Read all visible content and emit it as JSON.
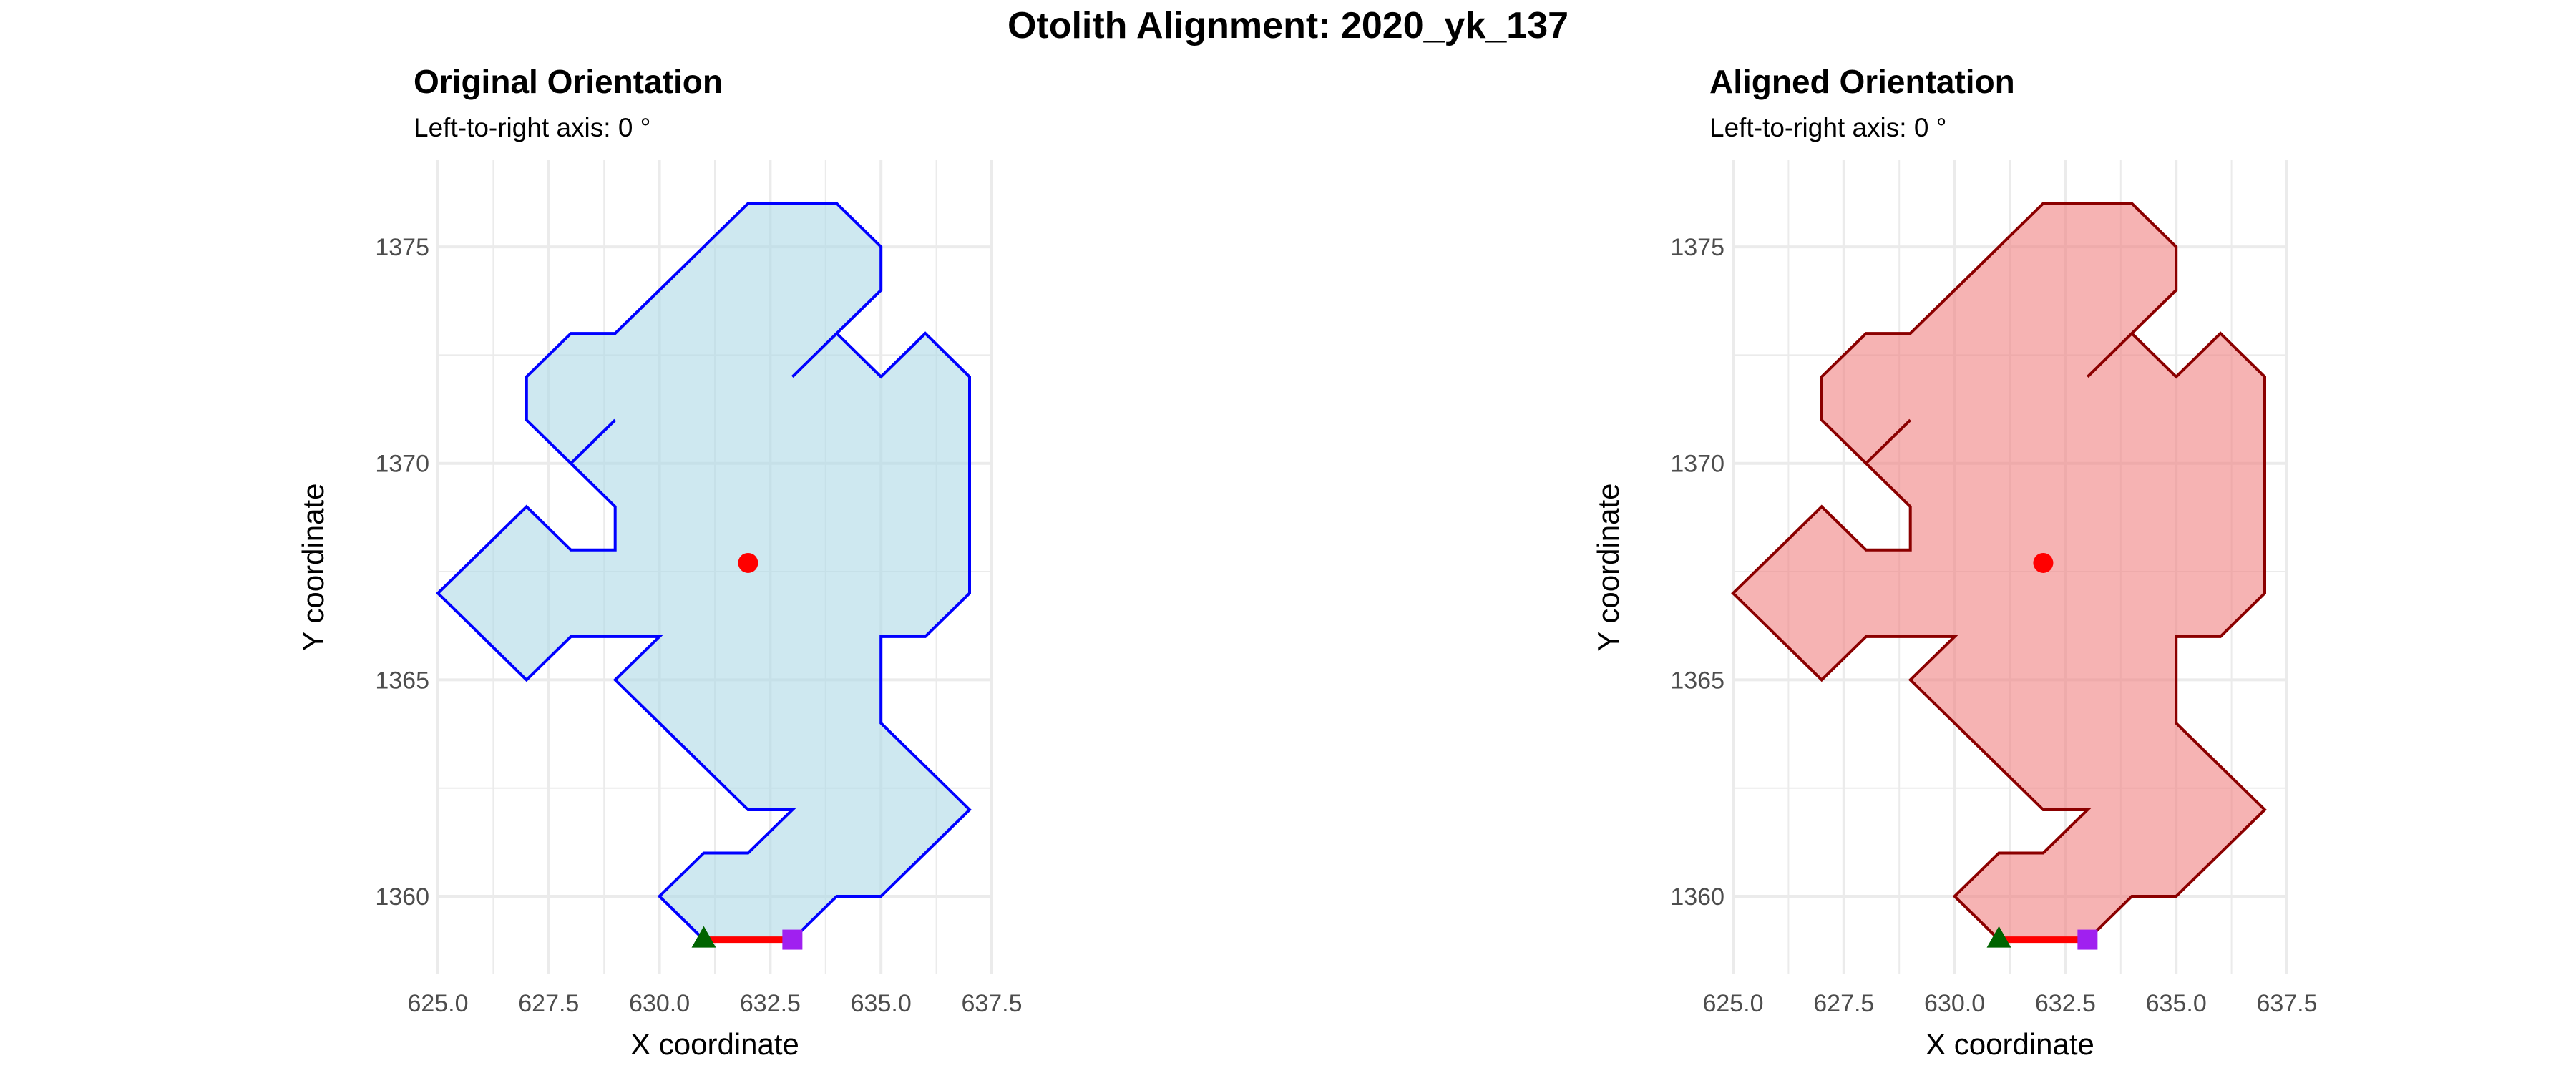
{
  "title": "Otolith Alignment: 2020_yk_137",
  "colors": {
    "grid": "#ebebeb",
    "centroid": "#ff0000",
    "axis_line": "#ff0000",
    "start_marker": "#006400",
    "end_marker": "#a020f0"
  },
  "chart_data": [
    {
      "type": "polygon",
      "title": "Original Orientation",
      "subtitle": "Left-to-right axis: 0 °",
      "xlabel": "X coordinate",
      "ylabel": "Y coordinate",
      "xlim": [
        625,
        637.5
      ],
      "ylim": [
        1358.2,
        1377
      ],
      "x_ticks": [
        "625.0",
        "627.5",
        "630.0",
        "632.5",
        "635.0",
        "637.5"
      ],
      "y_ticks": [
        "1360",
        "1365",
        "1370",
        "1375"
      ],
      "x_tick_values": [
        625,
        627.5,
        630,
        632.5,
        635,
        637.5
      ],
      "y_tick_values": [
        1360,
        1365,
        1370,
        1375
      ],
      "grid": true,
      "fill": "#add8e6",
      "outline": "#0000ff",
      "outline_points": [
        [
          631,
          1359
        ],
        [
          630,
          1360
        ],
        [
          631,
          1361
        ],
        [
          632,
          1361
        ],
        [
          633,
          1362
        ],
        [
          632,
          1362
        ],
        [
          629,
          1365
        ],
        [
          630,
          1366
        ],
        [
          628,
          1366
        ],
        [
          627,
          1365
        ],
        [
          625,
          1367
        ],
        [
          627,
          1369
        ],
        [
          628,
          1368
        ],
        [
          629,
          1368
        ],
        [
          629,
          1369
        ],
        [
          628,
          1370
        ],
        [
          627,
          1371
        ],
        [
          627,
          1372
        ],
        [
          628,
          1373
        ],
        [
          629,
          1373
        ],
        [
          632,
          1376
        ],
        [
          634,
          1376
        ],
        [
          635,
          1375
        ],
        [
          635,
          1374
        ],
        [
          634,
          1373
        ],
        [
          633,
          1372
        ],
        [
          634,
          1373
        ],
        [
          635,
          1372
        ],
        [
          636,
          1373
        ],
        [
          637,
          1372
        ],
        [
          637,
          1367
        ],
        [
          636,
          1366
        ],
        [
          635,
          1366
        ],
        [
          635,
          1364
        ],
        [
          637,
          1362
        ],
        [
          635,
          1360
        ],
        [
          634,
          1360
        ],
        [
          633,
          1359
        ],
        [
          631,
          1359
        ]
      ],
      "spur": [
        [
          628,
          1370
        ],
        [
          629,
          1371
        ]
      ],
      "centroid": [
        632,
        1367.7
      ],
      "axis_start": [
        631,
        1359
      ],
      "axis_end": [
        633,
        1359
      ]
    },
    {
      "type": "polygon",
      "title": "Aligned Orientation",
      "subtitle": "Left-to-right axis: 0 °",
      "xlabel": "X coordinate",
      "ylabel": "Y coordinate",
      "xlim": [
        625,
        637.5
      ],
      "ylim": [
        1358.2,
        1377
      ],
      "x_ticks": [
        "625.0",
        "627.5",
        "630.0",
        "632.5",
        "635.0",
        "637.5"
      ],
      "y_ticks": [
        "1360",
        "1365",
        "1370",
        "1375"
      ],
      "x_tick_values": [
        625,
        627.5,
        630,
        632.5,
        635,
        637.5
      ],
      "y_tick_values": [
        1360,
        1365,
        1370,
        1375
      ],
      "grid": true,
      "fill": "#f08080",
      "outline": "#8b0000",
      "outline_points": [
        [
          631,
          1359
        ],
        [
          630,
          1360
        ],
        [
          631,
          1361
        ],
        [
          632,
          1361
        ],
        [
          633,
          1362
        ],
        [
          632,
          1362
        ],
        [
          629,
          1365
        ],
        [
          630,
          1366
        ],
        [
          628,
          1366
        ],
        [
          627,
          1365
        ],
        [
          625,
          1367
        ],
        [
          627,
          1369
        ],
        [
          628,
          1368
        ],
        [
          629,
          1368
        ],
        [
          629,
          1369
        ],
        [
          628,
          1370
        ],
        [
          627,
          1371
        ],
        [
          627,
          1372
        ],
        [
          628,
          1373
        ],
        [
          629,
          1373
        ],
        [
          632,
          1376
        ],
        [
          634,
          1376
        ],
        [
          635,
          1375
        ],
        [
          635,
          1374
        ],
        [
          634,
          1373
        ],
        [
          633,
          1372
        ],
        [
          634,
          1373
        ],
        [
          635,
          1372
        ],
        [
          636,
          1373
        ],
        [
          637,
          1372
        ],
        [
          637,
          1367
        ],
        [
          636,
          1366
        ],
        [
          635,
          1366
        ],
        [
          635,
          1364
        ],
        [
          637,
          1362
        ],
        [
          635,
          1360
        ],
        [
          634,
          1360
        ],
        [
          633,
          1359
        ],
        [
          631,
          1359
        ]
      ],
      "spur": [
        [
          628,
          1370
        ],
        [
          629,
          1371
        ]
      ],
      "centroid": [
        632,
        1367.7
      ],
      "axis_start": [
        631,
        1359
      ],
      "axis_end": [
        633,
        1359
      ]
    }
  ]
}
